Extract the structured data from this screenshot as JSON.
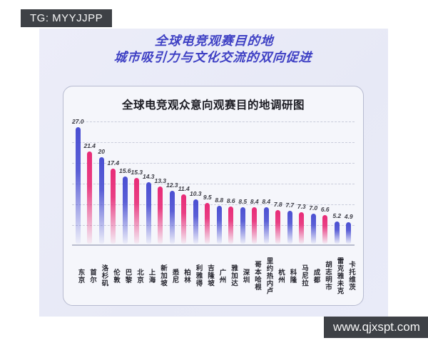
{
  "watermarks": {
    "top_left": "TG: MYYJJPP",
    "bottom_right": "www.qjxspt.com"
  },
  "header": {
    "title_line1": "全球电竞观赛目的地",
    "title_line2": "城市吸引力与文化交流的双向促进"
  },
  "card": {
    "title": "全球电竞观众意向观赛目的地调研图"
  },
  "chart_data": {
    "type": "bar",
    "title": "全球电竞观众意向观赛目的地调研图",
    "categories": [
      "东京",
      "首尔",
      "洛杉矶",
      "伦敦",
      "巴黎",
      "北京",
      "上海",
      "新加坡",
      "悉尼",
      "柏林",
      "利雅得",
      "吉隆坡",
      "广州",
      "雅加达",
      "深圳",
      "哥本哈根",
      "里约热内卢",
      "杭州",
      "科隆",
      "马尼拉",
      "成都",
      "胡志明市",
      "雷克雅未克",
      "卡托维茨"
    ],
    "values": [
      27.0,
      21.4,
      20,
      17.4,
      15.6,
      15.3,
      14.3,
      13.3,
      12.3,
      11.4,
      10.3,
      9.5,
      8.8,
      8.6,
      8.5,
      8.4,
      8.4,
      7.8,
      7.7,
      7.3,
      7.0,
      6.6,
      5.2,
      4.9
    ],
    "value_labels": [
      "27.0",
      "21.4",
      "20",
      "17.4",
      "15.6",
      "15.3",
      "14.3",
      "13.3",
      "12.3",
      "11.4",
      "10.3",
      "9.5",
      "8.8",
      "8.6",
      "8.5",
      "8.4",
      "8.4",
      "7.8",
      "7.7",
      "7.3",
      "7.0",
      "6.6",
      "5.2",
      "4.9"
    ],
    "bar_color_keys": [
      "blue",
      "pink",
      "blue",
      "pink",
      "blue",
      "pink",
      "blue",
      "pink",
      "blue",
      "pink",
      "blue",
      "pink",
      "blue",
      "pink",
      "blue",
      "pink",
      "blue",
      "pink",
      "blue",
      "pink",
      "blue",
      "pink",
      "blue",
      "blue"
    ],
    "colors": {
      "blue": "#4a4fd2",
      "pink": "#e82b77"
    },
    "xlabel": "",
    "ylabel": "",
    "ylim": [
      0,
      29
    ],
    "grid": "horizontal-dashed",
    "legend": "none"
  }
}
